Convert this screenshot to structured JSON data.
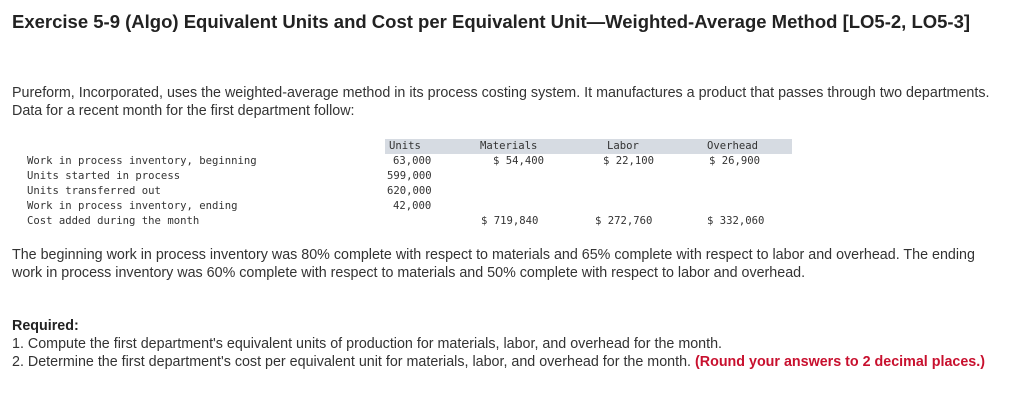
{
  "title": "Exercise 5-9 (Algo) Equivalent Units and Cost per Equivalent Unit—Weighted-Average Method [LO5-2, LO5-3]",
  "intro": "Pureform, Incorporated, uses the weighted-average method in its process costing system. It manufactures a product that passes through two departments. Data for a recent month for the first department follow:",
  "table": {
    "headers": {
      "units": "Units",
      "materials": "Materials",
      "labor": "Labor",
      "overhead": "Overhead"
    },
    "rows": [
      {
        "label": "Work in process inventory, beginning",
        "units": "63,000",
        "materials": "$ 54,400",
        "labor": "$ 22,100",
        "overhead": "$ 26,900"
      },
      {
        "label": "Units started in process",
        "units": "599,000"
      },
      {
        "label": "Units transferred out",
        "units": "620,000"
      },
      {
        "label": "Work in process inventory, ending",
        "units": "42,000"
      },
      {
        "label": "Cost added during the month",
        "materials": "$ 719,840",
        "labor": "$ 272,760",
        "overhead": "$ 332,060"
      }
    ]
  },
  "completion_text": "The beginning work in process inventory was 80% complete with respect to materials and 65% complete with respect to labor and overhead. The ending work in process inventory was 60% complete with respect to materials and 50% complete with respect to labor and overhead.",
  "required": {
    "label": "Required:",
    "item1": "1. Compute the first department's equivalent units of production for materials, labor, and overhead for the month.",
    "item2": "2. Determine the first department's cost per equivalent unit for materials, labor, and overhead for the month.",
    "item2_note": "(Round your answers to 2 decimal places.)"
  }
}
